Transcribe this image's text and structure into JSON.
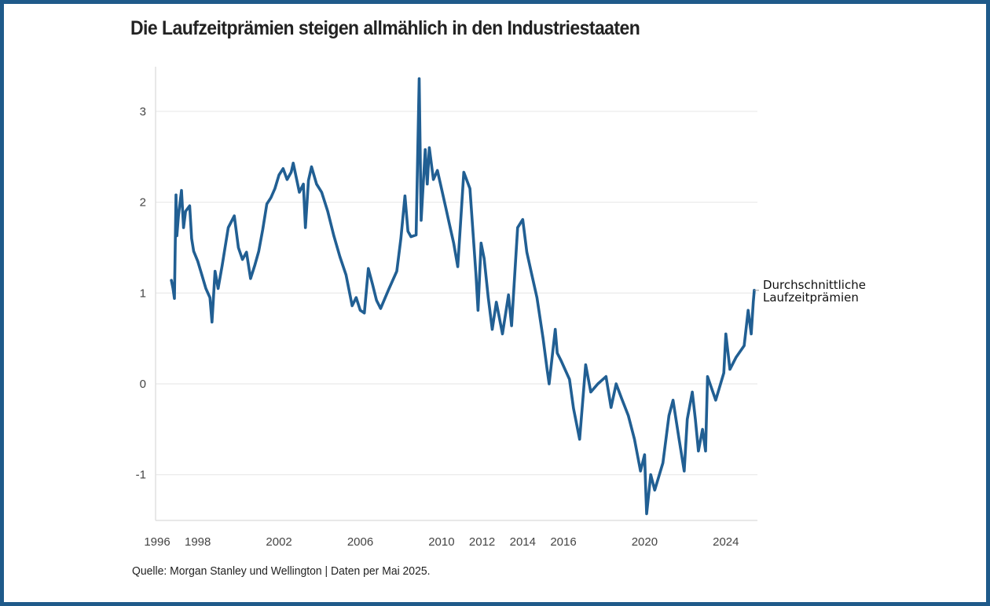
{
  "title": "Die Laufzeitprämien steigen allmählich in den Industriestaaten",
  "source": "Quelle: Morgan Stanley und Wellington | Daten per Mai 2025.",
  "colors": {
    "line": "#215f93",
    "frame": "#1f5a8a",
    "grid": "#e6e6e6",
    "axis": "#e0e0e0",
    "text": "#222222"
  },
  "chart_data": {
    "type": "line",
    "title": "Die Laufzeitprämien steigen allmählich in den Industriestaaten",
    "xlabel": "",
    "ylabel": "",
    "xlim": [
      1996,
      2025.5
    ],
    "ylim": [
      -1.5,
      3.5
    ],
    "grid": "horizontal",
    "x_ticks": [
      1996,
      1998,
      2002,
      2006,
      2010,
      2012,
      2014,
      2016,
      2020,
      2024
    ],
    "x_tick_labels": [
      "1996",
      "1998",
      "2002",
      "2006",
      "2010",
      "2012",
      "2014",
      "2016",
      "2020",
      "2024"
    ],
    "y_ticks": [
      -1,
      0,
      1,
      2,
      3
    ],
    "y_tick_labels": [
      "-1",
      "0",
      "1",
      "2",
      "3"
    ],
    "annotation": {
      "lines": [
        "Durchschnittliche",
        "Laufzeitprämien"
      ],
      "x": 2025.4,
      "y": 1.03
    },
    "series": [
      {
        "name": "Durchschnittliche Laufzeitprämien",
        "x": [
          1996.7,
          1996.78,
          1996.85,
          1996.93,
          1996.97,
          1997.05,
          1997.2,
          1997.3,
          1997.4,
          1997.6,
          1997.7,
          1997.8,
          1998.0,
          1998.2,
          1998.4,
          1998.6,
          1998.7,
          1998.85,
          1999.0,
          1999.2,
          1999.5,
          1999.8,
          2000.0,
          2000.2,
          2000.4,
          2000.6,
          2000.8,
          2001.0,
          2001.2,
          2001.4,
          2001.6,
          2001.8,
          2002.0,
          2002.2,
          2002.4,
          2002.6,
          2002.7,
          2003.0,
          2003.2,
          2003.3,
          2003.45,
          2003.6,
          2003.85,
          2004.1,
          2004.4,
          2004.7,
          2005.0,
          2005.3,
          2005.6,
          2005.8,
          2006.0,
          2006.2,
          2006.4,
          2006.6,
          2006.8,
          2007.0,
          2007.4,
          2007.8,
          2008.0,
          2008.2,
          2008.35,
          2008.5,
          2008.75,
          2008.9,
          2009.0,
          2009.2,
          2009.3,
          2009.4,
          2009.6,
          2009.8,
          2010.0,
          2010.2,
          2010.4,
          2010.6,
          2010.8,
          2011.1,
          2011.4,
          2011.7,
          2011.8,
          2011.95,
          2012.1,
          2012.3,
          2012.5,
          2012.7,
          2013.0,
          2013.3,
          2013.45,
          2013.75,
          2014.0,
          2014.2,
          2014.45,
          2014.7,
          2015.0,
          2015.2,
          2015.3,
          2015.6,
          2015.7,
          2015.9,
          2016.3,
          2016.5,
          2016.8,
          2017.1,
          2017.35,
          2017.7,
          2018.1,
          2018.35,
          2018.6,
          2018.9,
          2019.2,
          2019.5,
          2019.8,
          2020.0,
          2020.05,
          2020.1,
          2020.3,
          2020.5,
          2020.9,
          2021.2,
          2021.4,
          2021.7,
          2021.95,
          2022.1,
          2022.35,
          2022.5,
          2022.65,
          2022.85,
          2023.0,
          2023.1,
          2023.5,
          2023.9,
          2024.0,
          2024.2,
          2024.5,
          2024.9,
          2025.1,
          2025.25,
          2025.35,
          2025.4
        ],
        "y": [
          1.14,
          1.05,
          0.94,
          2.08,
          1.63,
          1.85,
          2.13,
          1.72,
          1.9,
          1.96,
          1.6,
          1.46,
          1.35,
          1.2,
          1.05,
          0.95,
          0.68,
          1.24,
          1.05,
          1.3,
          1.72,
          1.85,
          1.5,
          1.37,
          1.45,
          1.16,
          1.3,
          1.46,
          1.7,
          1.98,
          2.05,
          2.15,
          2.3,
          2.37,
          2.25,
          2.33,
          2.43,
          2.11,
          2.2,
          1.72,
          2.24,
          2.39,
          2.2,
          2.11,
          1.9,
          1.63,
          1.4,
          1.2,
          0.86,
          0.95,
          0.81,
          0.78,
          1.27,
          1.1,
          0.92,
          0.83,
          1.04,
          1.24,
          1.6,
          2.07,
          1.68,
          1.62,
          1.64,
          3.36,
          1.8,
          2.58,
          2.2,
          2.6,
          2.25,
          2.35,
          2.15,
          1.95,
          1.75,
          1.55,
          1.29,
          2.33,
          2.15,
          1.2,
          0.81,
          1.55,
          1.38,
          0.95,
          0.6,
          0.9,
          0.55,
          0.98,
          0.64,
          1.72,
          1.81,
          1.45,
          1.2,
          0.95,
          0.5,
          0.16,
          0.0,
          0.6,
          0.34,
          0.25,
          0.05,
          -0.27,
          -0.61,
          0.21,
          -0.09,
          0.0,
          0.08,
          -0.26,
          0.0,
          -0.18,
          -0.35,
          -0.61,
          -0.96,
          -0.78,
          -1.13,
          -1.43,
          -1.0,
          -1.17,
          -0.87,
          -0.35,
          -0.18,
          -0.61,
          -0.96,
          -0.39,
          -0.09,
          -0.39,
          -0.74,
          -0.5,
          -0.74,
          0.08,
          -0.18,
          0.12,
          0.55,
          0.16,
          0.29,
          0.42,
          0.81,
          0.55,
          0.9,
          1.03
        ]
      }
    ]
  }
}
